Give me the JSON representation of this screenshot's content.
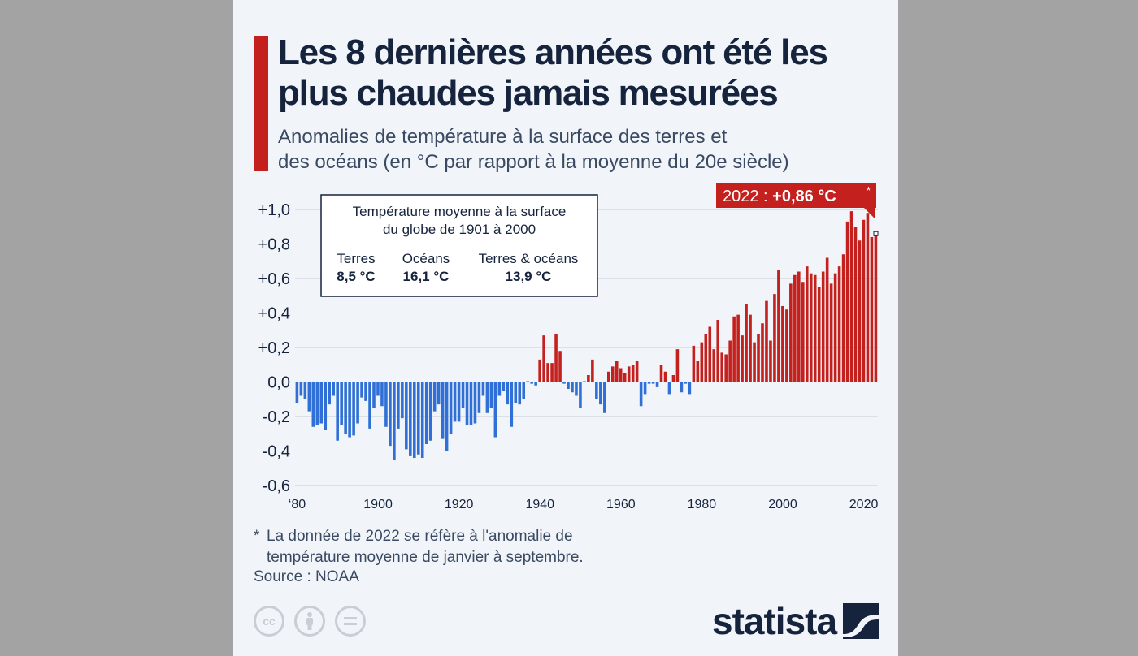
{
  "title_line1": "Les 8 dernières années ont été les",
  "title_line2": "plus chaudes jamais mesurées",
  "subtitle_line1": "Anomalies de température à la surface des terres et",
  "subtitle_line2": "des océans (en °C par rapport à la moyenne du 20e siècle)",
  "infobox": {
    "line1": "Température moyenne à la surface",
    "line2": "du globe de 1901 à 2000",
    "items": [
      {
        "label": "Terres",
        "value": "8,5 °C"
      },
      {
        "label": "Océans",
        "value": "16,1 °C"
      },
      {
        "label": "Terres & océans",
        "value": "13,9 °C"
      }
    ]
  },
  "callout": {
    "prefix": "2022 : ",
    "value": "+0,86 °C",
    "star": "*"
  },
  "footnote": {
    "star": "*",
    "line1": "La donnée de 2022 se réfère à l'anomalie de",
    "line2": "température moyenne de janvier à septembre."
  },
  "source": "Source : NOAA",
  "license_icons": [
    "creative-commons-icon",
    "attribution-person-icon",
    "no-derivatives-icon"
  ],
  "logo_text": "statista",
  "colors": {
    "positive": "#c4201e",
    "negative": "#2f6fd6",
    "title": "#16233d",
    "text": "#3b4a63",
    "accent": "#c4201e"
  },
  "chart_data": {
    "type": "bar",
    "x_start_year": 1880,
    "x_end_year": 2022,
    "ylim": [
      -0.6,
      1.0
    ],
    "yticks": [
      "+1,0",
      "+0,8",
      "+0,6",
      "+0,4",
      "+0,2",
      "0,0",
      "-0,2",
      "-0,4",
      "-0,6"
    ],
    "ytick_values": [
      1.0,
      0.8,
      0.6,
      0.4,
      0.2,
      0.0,
      -0.2,
      -0.4,
      -0.6
    ],
    "xticks": [
      "‘80",
      "1900",
      "1920",
      "1940",
      "1960",
      "1980",
      "2000",
      "2020"
    ],
    "xtick_years": [
      1880,
      1900,
      1920,
      1940,
      1960,
      1980,
      2000,
      2020
    ],
    "grid": true,
    "legend": "none",
    "values": [
      -0.12,
      -0.08,
      -0.1,
      -0.17,
      -0.26,
      -0.25,
      -0.24,
      -0.28,
      -0.13,
      -0.08,
      -0.34,
      -0.25,
      -0.3,
      -0.32,
      -0.31,
      -0.24,
      -0.09,
      -0.11,
      -0.27,
      -0.15,
      -0.08,
      -0.14,
      -0.26,
      -0.37,
      -0.45,
      -0.27,
      -0.21,
      -0.39,
      -0.43,
      -0.44,
      -0.42,
      -0.44,
      -0.36,
      -0.34,
      -0.17,
      -0.13,
      -0.33,
      -0.4,
      -0.3,
      -0.23,
      -0.23,
      -0.15,
      -0.25,
      -0.25,
      -0.24,
      -0.18,
      -0.08,
      -0.18,
      -0.15,
      -0.32,
      -0.08,
      -0.05,
      -0.13,
      -0.26,
      -0.12,
      -0.13,
      -0.1,
      0.0,
      -0.01,
      -0.02,
      0.13,
      0.27,
      0.11,
      0.11,
      0.28,
      0.18,
      -0.01,
      -0.04,
      -0.06,
      -0.08,
      -0.15,
      0.0,
      0.04,
      0.13,
      -0.1,
      -0.13,
      -0.18,
      0.06,
      0.09,
      0.12,
      0.08,
      0.05,
      0.09,
      0.1,
      0.12,
      -0.14,
      -0.07,
      -0.01,
      -0.01,
      -0.03,
      0.1,
      0.06,
      -0.07,
      0.04,
      0.19,
      -0.06,
      -0.01,
      -0.07,
      0.21,
      0.12,
      0.23,
      0.28,
      0.32,
      0.19,
      0.36,
      0.17,
      0.16,
      0.24,
      0.38,
      0.39,
      0.27,
      0.45,
      0.39,
      0.23,
      0.28,
      0.34,
      0.47,
      0.24,
      0.51,
      0.65,
      0.44,
      0.42,
      0.57,
      0.62,
      0.64,
      0.58,
      0.67,
      0.63,
      0.62,
      0.55,
      0.64,
      0.72,
      0.57,
      0.63,
      0.67,
      0.74,
      0.93,
      0.99,
      0.9,
      0.82,
      0.94,
      0.98,
      0.84,
      0.86
    ]
  }
}
